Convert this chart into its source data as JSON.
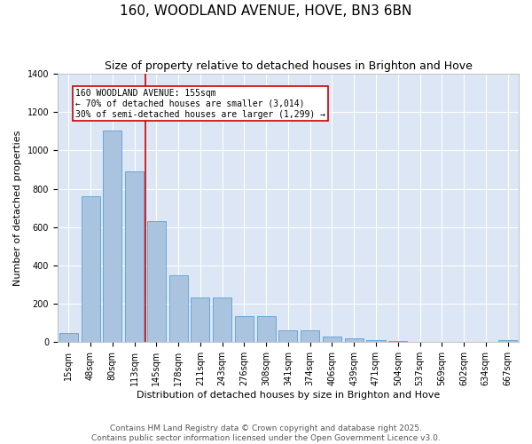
{
  "title_line1": "160, WOODLAND AVENUE, HOVE, BN3 6BN",
  "title_line2": "Size of property relative to detached houses in Brighton and Hove",
  "xlabel": "Distribution of detached houses by size in Brighton and Hove",
  "ylabel": "Number of detached properties",
  "categories": [
    "15sqm",
    "48sqm",
    "80sqm",
    "113sqm",
    "145sqm",
    "178sqm",
    "211sqm",
    "243sqm",
    "276sqm",
    "308sqm",
    "341sqm",
    "374sqm",
    "406sqm",
    "439sqm",
    "471sqm",
    "504sqm",
    "537sqm",
    "569sqm",
    "602sqm",
    "634sqm",
    "667sqm"
  ],
  "values": [
    48,
    762,
    1102,
    893,
    630,
    348,
    232,
    232,
    135,
    135,
    62,
    62,
    30,
    20,
    10,
    8,
    1,
    1,
    0,
    0,
    10
  ],
  "bar_color": "#aac4e0",
  "bar_edge_color": "#5a9fd4",
  "vline_x_index": 3.5,
  "vline_color": "#cc0000",
  "annotation_text": "160 WOODLAND AVENUE: 155sqm\n← 70% of detached houses are smaller (3,014)\n30% of semi-detached houses are larger (1,299) →",
  "annotation_box_facecolor": "#ffffff",
  "annotation_box_edgecolor": "#cc0000",
  "ylim": [
    0,
    1400
  ],
  "yticks": [
    0,
    200,
    400,
    600,
    800,
    1000,
    1200,
    1400
  ],
  "background_color": "#dce6f5",
  "fig_facecolor": "#ffffff",
  "footer_text": "Contains HM Land Registry data © Crown copyright and database right 2025.\nContains public sector information licensed under the Open Government Licence v3.0.",
  "title_fontsize": 11,
  "subtitle_fontsize": 9,
  "axis_label_fontsize": 8,
  "tick_fontsize": 7,
  "footer_fontsize": 6.5,
  "annotation_fontsize": 7
}
